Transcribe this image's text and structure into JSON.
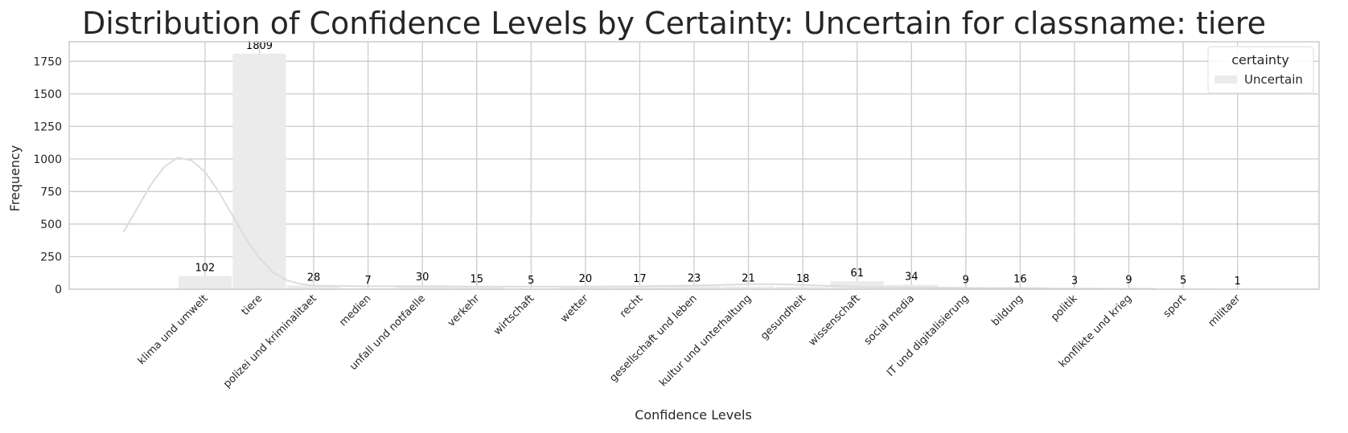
{
  "chart_data": {
    "type": "bar",
    "title": "Distribution of Confidence Levels by Certainty: Uncertain for classname: tiere",
    "xlabel": "Confidence Levels",
    "ylabel": "Frequency",
    "categories": [
      "klima und umwelt",
      "tiere",
      "polizei und kriminalitaet",
      "medien",
      "unfall und notfaelle",
      "verkehr",
      "wirtschaft",
      "wetter",
      "recht",
      "gesellschaft und leben",
      "kultur und unterhaltung",
      "gesundheit",
      "wissenschaft",
      "social media",
      "IT und digitalisierung",
      "bildung",
      "politik",
      "konflikte und krieg",
      "sport",
      "militaer"
    ],
    "series": [
      {
        "name": "Uncertain",
        "values": [
          102,
          1809,
          28,
          7,
          30,
          15,
          5,
          20,
          17,
          23,
          21,
          18,
          61,
          34,
          9,
          16,
          3,
          9,
          5,
          1
        ]
      }
    ],
    "kde": [
      [
        -1.5,
        440
      ],
      [
        -1.25,
        620
      ],
      [
        -1.0,
        800
      ],
      [
        -0.75,
        940
      ],
      [
        -0.5,
        1010
      ],
      [
        -0.25,
        990
      ],
      [
        0.0,
        900
      ],
      [
        0.25,
        750
      ],
      [
        0.5,
        570
      ],
      [
        0.75,
        390
      ],
      [
        1.0,
        240
      ],
      [
        1.25,
        130
      ],
      [
        1.5,
        70
      ],
      [
        1.75,
        40
      ],
      [
        2.0,
        28
      ],
      [
        2.5,
        24
      ],
      [
        3.0,
        22
      ],
      [
        4.0,
        22
      ],
      [
        5.0,
        20
      ],
      [
        6.0,
        20
      ],
      [
        7.0,
        20
      ],
      [
        8.0,
        22
      ],
      [
        9.0,
        28
      ],
      [
        9.5,
        33
      ],
      [
        10.0,
        38
      ],
      [
        10.5,
        38
      ],
      [
        11.0,
        33
      ],
      [
        11.5,
        25
      ],
      [
        12.0,
        18
      ],
      [
        13.0,
        13
      ],
      [
        14.0,
        10
      ],
      [
        15.0,
        7
      ],
      [
        16.0,
        5
      ],
      [
        17.0,
        4
      ],
      [
        17.5,
        3
      ]
    ],
    "yticks": [
      0,
      250,
      500,
      750,
      1000,
      1250,
      1500,
      1750
    ],
    "ylim": [
      0,
      1900
    ],
    "xlim": [
      -2.5,
      20.5
    ],
    "grid": true,
    "legend": {
      "title": "certainty",
      "position": "top-right",
      "entries": [
        "Uncertain"
      ]
    },
    "colors": {
      "bar": "#ebebeb",
      "kde": "#dcdcdc",
      "grid": "#cccccc",
      "text": "#262626",
      "label": "#000000"
    }
  }
}
